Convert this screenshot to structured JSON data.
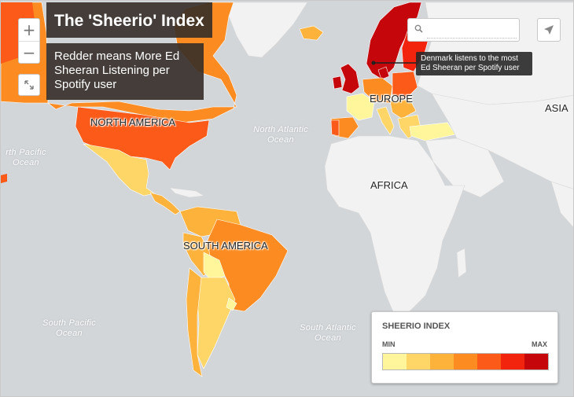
{
  "title": "The 'Sheerio' Index",
  "description": "Redder means More Ed Sheeran Listening per Spotify user",
  "controls": {
    "zoom_in": "+",
    "zoom_out": "−",
    "fullscreen_icon": "expand-icon",
    "locate_icon": "paper-plane-icon"
  },
  "search": {
    "icon": "search-icon",
    "value": "",
    "placeholder": ""
  },
  "tooltip": "Denmark listens to the most Ed Sheeran per Spotify user",
  "labels": {
    "north_america": "NORTH AMERICA",
    "south_america": "SOUTH AMERICA",
    "europe": "EUROPE",
    "africa": "AFRICA",
    "asia": "ASIA"
  },
  "oceans": {
    "north_atlantic": "North Atlantic Ocean",
    "north_pacific": "rth Pacific Ocean",
    "south_pacific": "South Pacific Ocean",
    "south_atlantic": "South Atlantic Ocean"
  },
  "legend": {
    "title": "SHEERIO INDEX",
    "min": "MIN",
    "max": "MAX",
    "colors": [
      "#fff59a",
      "#fed567",
      "#fdb23c",
      "#fc8c22",
      "#fb5a18",
      "#f2240e",
      "#c5060b"
    ]
  }
}
